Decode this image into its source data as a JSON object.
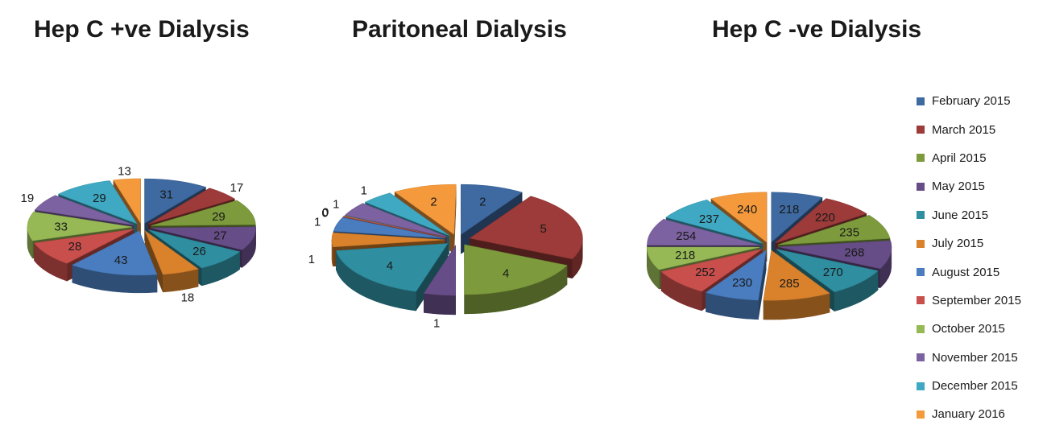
{
  "colors": [
    "#3e6aa1",
    "#9c3b39",
    "#7d9b3c",
    "#674d88",
    "#2f8ea0",
    "#d9822b",
    "#4a7dbf",
    "#c94f4c",
    "#97b955",
    "#7d62a1",
    "#3fa9c3",
    "#f59a3c"
  ],
  "legend": {
    "items": [
      "February 2015",
      "March 2015",
      "April 2015",
      "May 2015",
      "June 2015",
      "July 2015",
      "August 2015",
      "September 2015",
      "October 2015",
      "November 2015",
      "December 2015",
      "January 2016"
    ]
  },
  "chart_data": [
    {
      "type": "pie",
      "style": "3d-exploded",
      "title": "Hep C +ve Dialysis",
      "categories": [
        "February 2015",
        "March 2015",
        "April 2015",
        "May 2015",
        "June 2015",
        "July 2015",
        "August 2015",
        "September 2015",
        "October 2015",
        "November 2015",
        "December 2015",
        "January 2016"
      ],
      "values": [
        31,
        17,
        29,
        27,
        26,
        18,
        43,
        28,
        33,
        19,
        29,
        13
      ]
    },
    {
      "type": "pie",
      "style": "3d-exploded",
      "title": "Paritoneal Dialysis",
      "categories": [
        "February 2015",
        "March 2015",
        "April 2015",
        "May 2015",
        "June 2015",
        "July 2015",
        "August 2015",
        "September 2015",
        "October 2015",
        "November 2015",
        "December 2015",
        "January 2016"
      ],
      "values": [
        2,
        5,
        4,
        1,
        4,
        1,
        1,
        0,
        0,
        1,
        1,
        2
      ]
    },
    {
      "type": "pie",
      "style": "3d-exploded",
      "title": "Hep C -ve Dialysis",
      "categories": [
        "February 2015",
        "March 2015",
        "April 2015",
        "May 2015",
        "June 2015",
        "July 2015",
        "August 2015",
        "September 2015",
        "October 2015",
        "November 2015",
        "December 2015",
        "January 2016"
      ],
      "values": [
        218,
        220,
        235,
        268,
        270,
        285,
        230,
        252,
        218,
        254,
        237,
        240
      ],
      "legend": "right"
    }
  ]
}
